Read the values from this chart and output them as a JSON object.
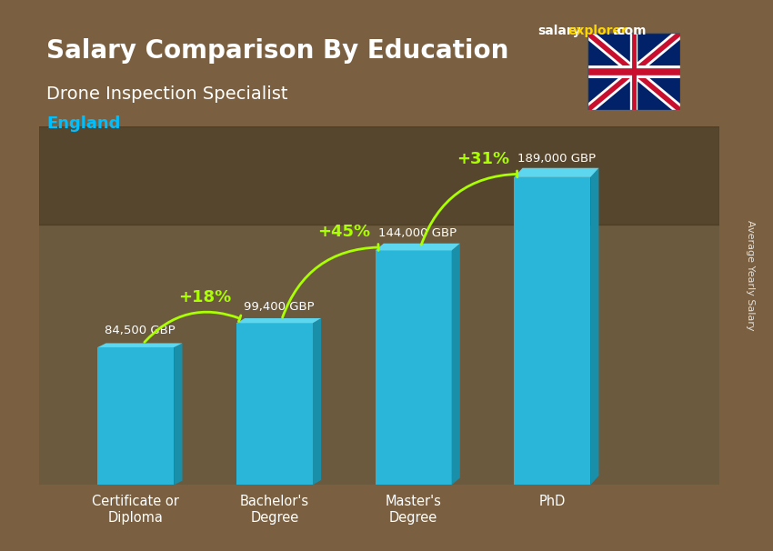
{
  "title_line1": "Salary Comparison By Education",
  "title_line2": "Drone Inspection Specialist",
  "title_line3": "England",
  "watermark": "salaryexplorer.com",
  "ylabel": "Average Yearly Salary",
  "categories": [
    "Certificate or\nDiploma",
    "Bachelor's\nDegree",
    "Master's\nDegree",
    "PhD"
  ],
  "values": [
    84500,
    99400,
    144000,
    189000
  ],
  "value_labels": [
    "84,500 GBP",
    "99,400 GBP",
    "144,000 GBP",
    "189,000 GBP"
  ],
  "pct_labels": [
    "+18%",
    "+45%",
    "+31%"
  ],
  "bar_color_top": "#00BFFF",
  "bar_color_face": "#00A8D6",
  "bar_color_side": "#007AA8",
  "background_color": "#7a6a5a",
  "title_color": "#ffffff",
  "subtitle_color": "#ffffff",
  "england_color": "#00BFFF",
  "value_label_color": "#ffffff",
  "pct_color": "#aaff00",
  "arrow_color": "#aaff00",
  "ylim": [
    0,
    220000
  ],
  "bar_width": 0.55
}
